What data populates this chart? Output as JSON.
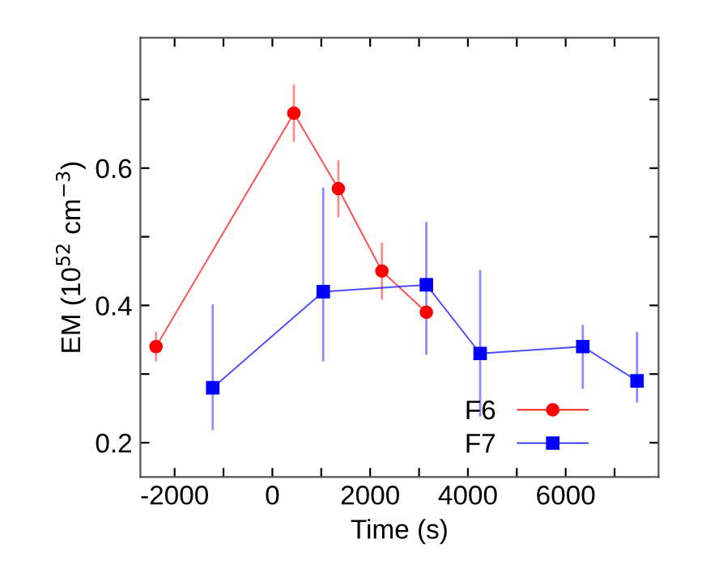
{
  "chart_data": {
    "type": "line",
    "xlabel": "Time (s)",
    "ylabel": "EM (10$^{52}$ cm$^{−3}$)",
    "xlim": [
      -2700,
      7900
    ],
    "ylim": [
      0.15,
      0.79
    ],
    "xticks": [
      -2000,
      {
        "value": -1000,
        "label": null
      },
      0,
      {
        "value": 1000,
        "label": null
      },
      2000,
      {
        "value": 3000,
        "label": null
      },
      4000,
      {
        "value": 5000,
        "label": null
      },
      6000,
      {
        "value": 7000,
        "label": null
      }
    ],
    "yticks": [
      0.2,
      {
        "value": 0.3,
        "label": null
      },
      0.4,
      {
        "value": 0.5,
        "label": null
      },
      0.6,
      {
        "value": 0.7,
        "label": null
      }
    ],
    "grid": false,
    "legend": "bottom right",
    "line_style": "solid",
    "series": [
      {
        "name": "F6",
        "color": "#ff0000",
        "marker": "circle",
        "x": [
          -2380,
          440,
          1350,
          2240,
          3150
        ],
        "values": [
          0.34,
          0.68,
          0.57,
          0.45,
          0.39
        ],
        "errors": [
          0.02,
          0.04,
          0.04,
          0.04,
          null
        ]
      },
      {
        "name": "F7",
        "color": "#0000ff",
        "marker": "square",
        "x": [
          -1220,
          1040,
          3150,
          4250,
          6350,
          7460
        ],
        "values": [
          0.28,
          0.42,
          0.43,
          0.33,
          0.34,
          0.29
        ],
        "errors": [
          [
            0.22,
            0.4
          ],
          [
            0.32,
            0.57
          ],
          [
            0.33,
            0.52
          ],
          [
            0.24,
            0.45
          ],
          [
            0.28,
            0.37
          ],
          [
            0.26,
            0.36
          ]
        ]
      }
    ]
  }
}
